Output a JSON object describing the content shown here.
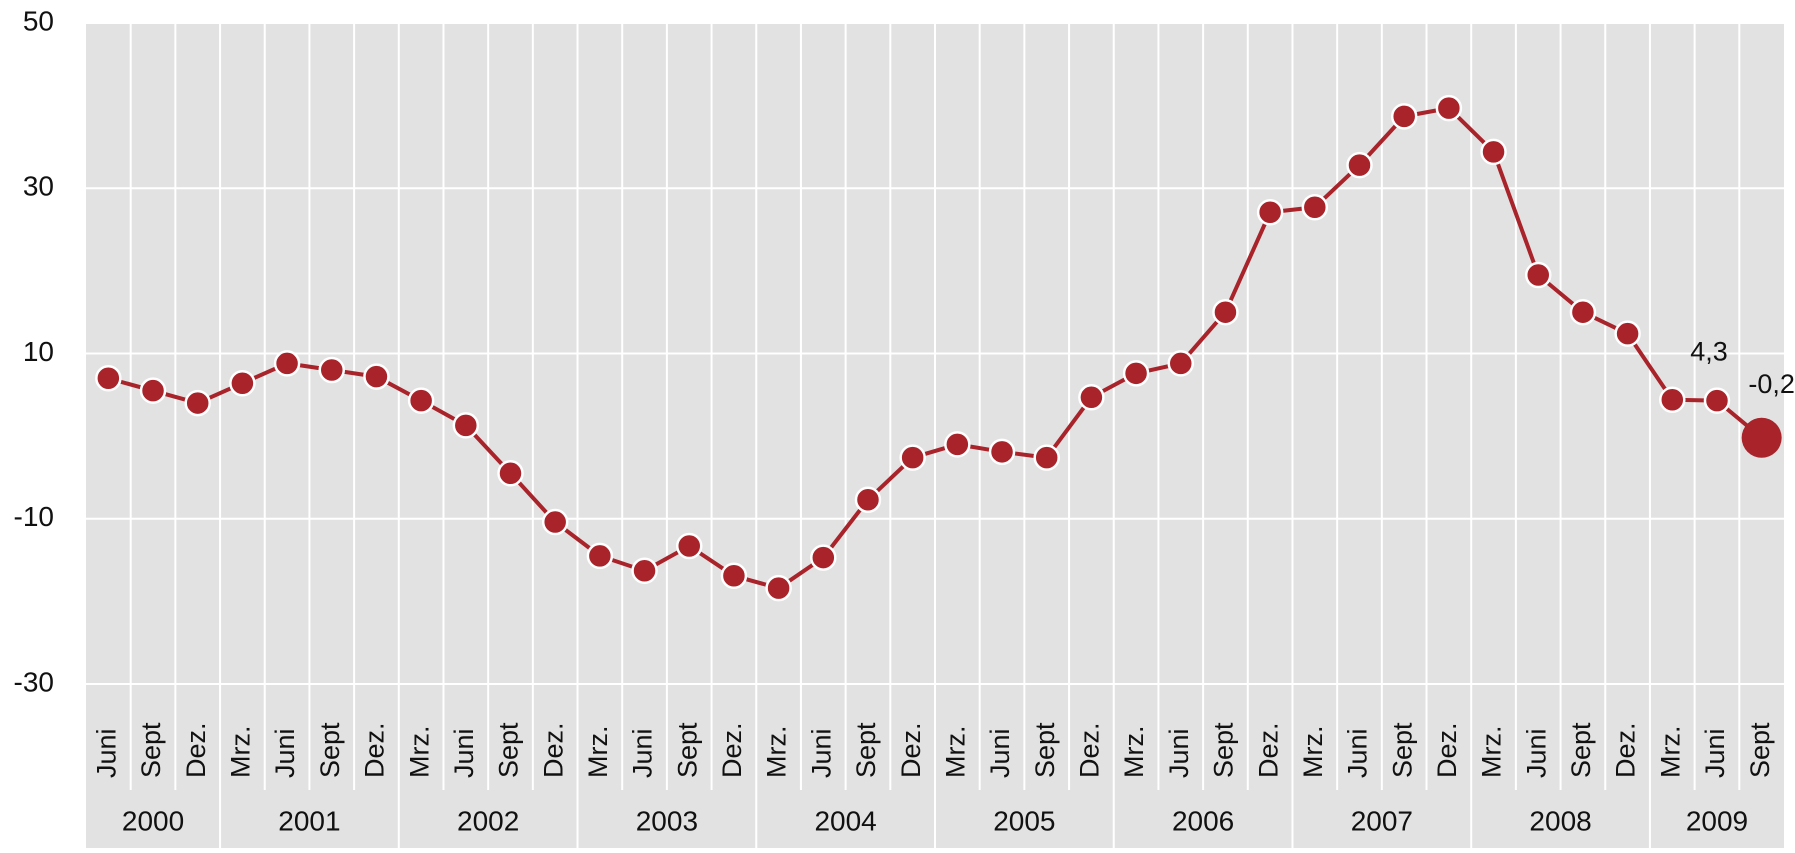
{
  "chart_data": {
    "type": "line",
    "color": "#a8232a",
    "groups": [
      {
        "name": "2000",
        "categories": [
          "Juni",
          "Sept",
          "Dez."
        ]
      },
      {
        "name": "2001",
        "categories": [
          "Mrz.",
          "Juni",
          "Sept",
          "Dez."
        ]
      },
      {
        "name": "2002",
        "categories": [
          "Mrz.",
          "Juni",
          "Sept",
          "Dez."
        ]
      },
      {
        "name": "2003",
        "categories": [
          "Mrz.",
          "Juni",
          "Sept",
          "Dez."
        ]
      },
      {
        "name": "2004",
        "categories": [
          "Mrz.",
          "Juni",
          "Sept",
          "Dez."
        ]
      },
      {
        "name": "2005",
        "categories": [
          "Mrz.",
          "Juni",
          "Sept",
          "Dez."
        ]
      },
      {
        "name": "2006",
        "categories": [
          "Mrz.",
          "Juni",
          "Sept",
          "Dez."
        ]
      },
      {
        "name": "2007",
        "categories": [
          "Mrz.",
          "Juni",
          "Sept",
          "Dez."
        ]
      },
      {
        "name": "2008",
        "categories": [
          "Mrz.",
          "Juni",
          "Sept",
          "Dez."
        ]
      },
      {
        "name": "2009",
        "categories": [
          "Mrz.",
          "Juni",
          "Sept"
        ]
      }
    ],
    "values": [
      7,
      5.5,
      4.0,
      6.4,
      8.8,
      8.0,
      7.2,
      4.3,
      1.3,
      -4.5,
      -10.4,
      -14.5,
      -16.3,
      -13.3,
      -16.9,
      -18.4,
      -14.7,
      -7.7,
      -2.6,
      -1.0,
      -1.9,
      -2.6,
      4.7,
      7.6,
      8.8,
      15.0,
      27.1,
      27.7,
      32.8,
      38.7,
      39.7,
      34.4,
      19.5,
      15.0,
      12.4,
      4.4,
      4.3,
      -0.2
    ],
    "value_labels": [
      null,
      null,
      null,
      null,
      null,
      null,
      null,
      null,
      null,
      null,
      null,
      null,
      null,
      null,
      null,
      null,
      null,
      null,
      null,
      null,
      null,
      null,
      null,
      null,
      null,
      null,
      null,
      null,
      null,
      null,
      null,
      null,
      null,
      null,
      null,
      null,
      "4,3",
      "-0,2"
    ],
    "ylim": [
      -30,
      50
    ],
    "yticks": [
      -30,
      -10,
      10,
      30,
      50
    ],
    "grid": true
  }
}
